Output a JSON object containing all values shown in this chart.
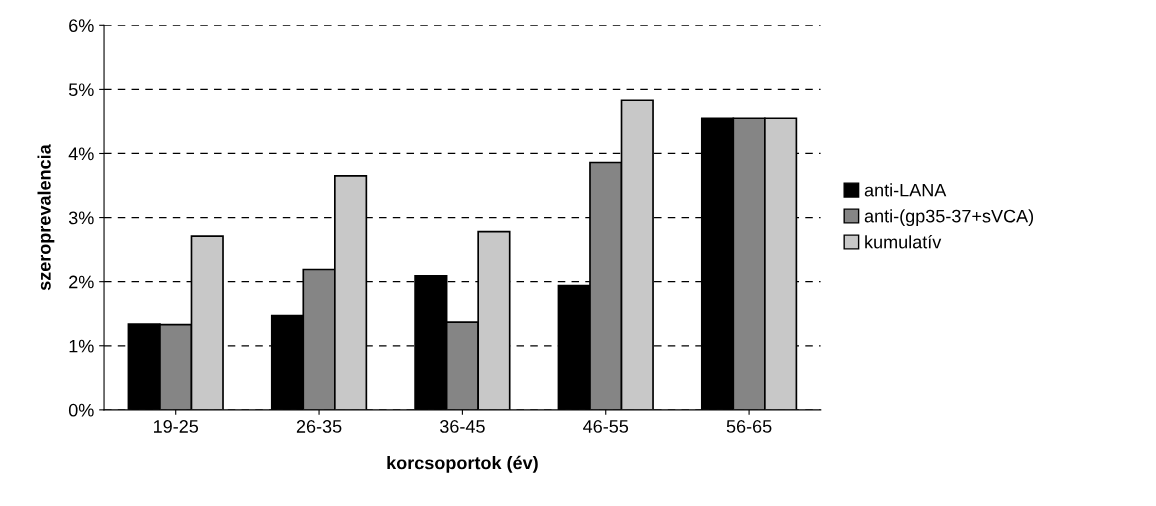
{
  "chart_data": {
    "type": "bar",
    "xlabel": "korcsoportok (év)",
    "ylabel": "szeroprevalencia",
    "categories": [
      "19-25",
      "26-35",
      "36-45",
      "46-55",
      "56-65"
    ],
    "series": [
      {
        "name": "anti-LANA",
        "color": "#000000",
        "values": [
          1.34,
          1.47,
          2.09,
          1.94,
          4.55
        ]
      },
      {
        "name": "anti-(gp35-37+sVCA)",
        "color": "#858585",
        "values": [
          1.33,
          2.19,
          1.37,
          3.86,
          4.55
        ]
      },
      {
        "name": "kumulatív",
        "color": "#c8c8c8",
        "values": [
          2.71,
          3.65,
          2.78,
          4.83,
          4.55
        ]
      }
    ],
    "ylim": [
      0,
      6
    ],
    "yticks": [
      {
        "value": 0,
        "label": "0%"
      },
      {
        "value": 1,
        "label": "1%"
      },
      {
        "value": 2,
        "label": "2%"
      },
      {
        "value": 3,
        "label": "3%"
      },
      {
        "value": 4,
        "label": "4%"
      },
      {
        "value": 5,
        "label": "5%"
      },
      {
        "value": 6,
        "label": "6%"
      }
    ],
    "grid": "y",
    "legend": "right"
  }
}
